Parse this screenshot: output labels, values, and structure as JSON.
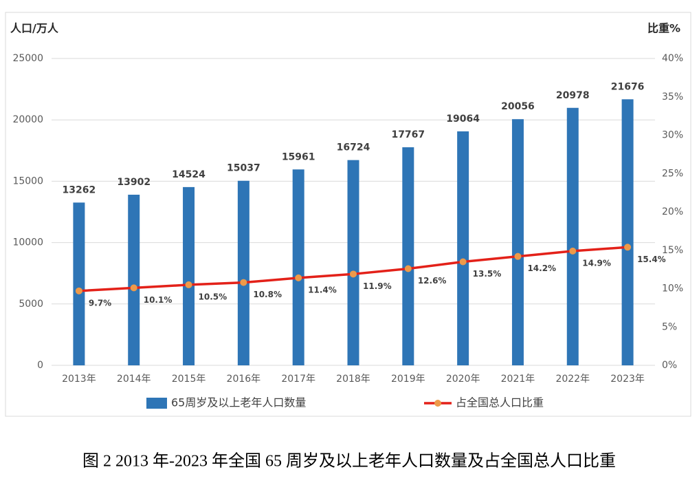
{
  "chart_data": {
    "type": "bar",
    "caption": "图 2   2013 年-2023 年全国 65 周岁及以上老年人口数量及占全国总人口比重",
    "y_label": "人口/万人",
    "y2_label": "比重%",
    "categories": [
      "2013年",
      "2014年",
      "2015年",
      "2016年",
      "2017年",
      "2018年",
      "2019年",
      "2020年",
      "2021年",
      "2022年",
      "2023年"
    ],
    "series": [
      {
        "name": "65周岁及以上老年人口数量",
        "type": "bar",
        "color": "#2e75b6",
        "axis": "y",
        "values": [
          13262,
          13902,
          14524,
          15037,
          15961,
          16724,
          17767,
          19064,
          20056,
          20978,
          21676
        ]
      },
      {
        "name": "占全国总人口比重",
        "type": "line",
        "color": "#e32119",
        "marker_color": "#ed9a4a",
        "axis": "y2",
        "values": [
          9.7,
          10.1,
          10.5,
          10.8,
          11.4,
          11.9,
          12.6,
          13.5,
          14.2,
          14.9,
          15.4
        ],
        "value_labels": [
          "9.7%",
          "10.1%",
          "10.5%",
          "10.8%",
          "11.4%",
          "11.9%",
          "12.6%",
          "13.5%",
          "14.2%",
          "14.9%",
          "15.4%"
        ]
      }
    ],
    "ylim": [
      0,
      25000
    ],
    "yticks": [
      0,
      5000,
      10000,
      15000,
      20000,
      25000
    ],
    "y2lim": [
      0,
      40
    ],
    "y2ticks": [
      {
        "value": 0,
        "label": "0%"
      },
      {
        "value": 5,
        "label": "5%"
      },
      {
        "value": 10,
        "label": "10%"
      },
      {
        "value": 15,
        "label": "15%"
      },
      {
        "value": 20,
        "label": "20%"
      },
      {
        "value": 25,
        "label": "25%"
      },
      {
        "value": 30,
        "label": "30%"
      },
      {
        "value": 35,
        "label": "35%"
      },
      {
        "value": 40,
        "label": "40%"
      }
    ],
    "grid": true,
    "legend": "bottom"
  }
}
